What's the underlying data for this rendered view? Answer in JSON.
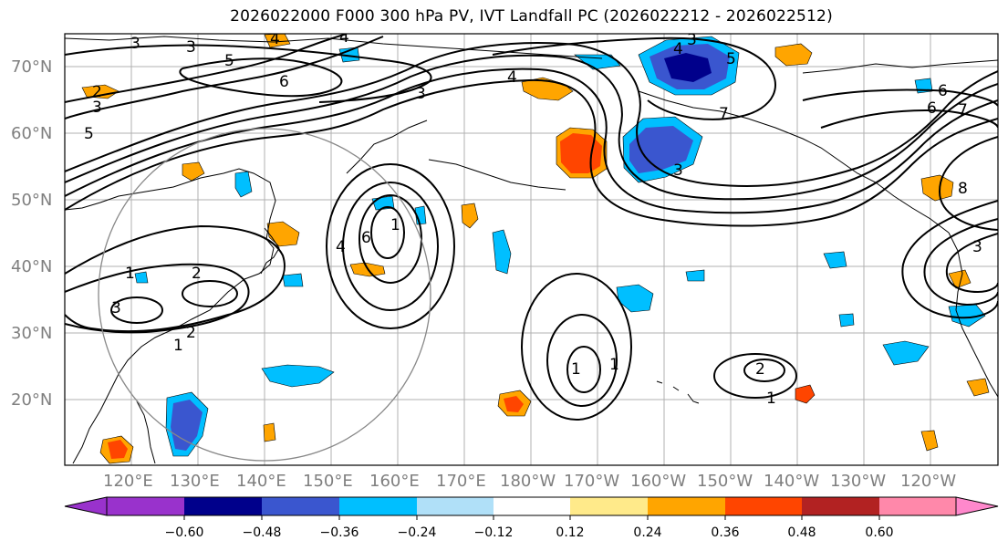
{
  "title": "2026022000 F000 300 hPa PV, IVT Landfall PC (2026022212 - 2026022512)",
  "map": {
    "lat_ticks": [
      "70°N",
      "60°N",
      "50°N",
      "40°N",
      "30°N",
      "20°N"
    ],
    "lon_ticks": [
      "120°E",
      "130°E",
      "140°E",
      "150°E",
      "160°E",
      "170°E",
      "180°W",
      "170°W",
      "160°W",
      "150°W",
      "140°W",
      "130°W",
      "120°W"
    ],
    "contour_labels": [
      "3",
      "3",
      "4",
      "4",
      "5",
      "6",
      "2",
      "3",
      "5",
      "3",
      "4",
      "3",
      "5",
      "4",
      "7",
      "6",
      "7",
      "6",
      "8",
      "1",
      "2",
      "3",
      "1",
      "2",
      "6",
      "4",
      "1",
      "1",
      "1",
      "2",
      "1",
      "3",
      "3"
    ],
    "colors": {
      "ocean": "#ffffff",
      "grid": "#aaaaaa",
      "contour": "#000000"
    }
  },
  "colorbar": {
    "ticks": [
      "−0.60",
      "−0.48",
      "−0.36",
      "−0.24",
      "−0.12",
      "0.12",
      "0.24",
      "0.36",
      "0.48",
      "0.60"
    ],
    "colors": [
      "#9932cc",
      "#00008b",
      "#3a56cf",
      "#00bfff",
      "#b0e0f8",
      "#ffffff",
      "#ffea8a",
      "#ffa500",
      "#ff4500",
      "#b22222",
      "#ff88aa",
      "#ff88cc"
    ]
  }
}
